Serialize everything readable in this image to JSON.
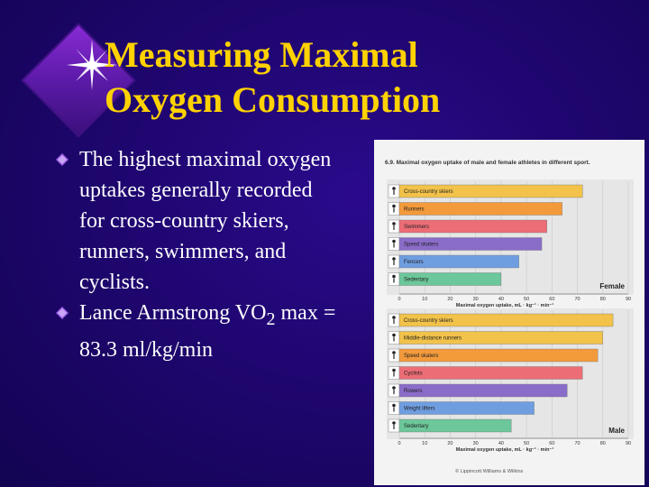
{
  "slide": {
    "title_line1": "Measuring Maximal",
    "title_line2": "Oxygen Consumption",
    "bullets": [
      {
        "text": "The highest maximal oxygen uptakes generally recorded for cross-country skiers, runners, swimmers, and cyclists."
      },
      {
        "text_before": "Lance Armstrong VO",
        "subscript": "2",
        "text_after": " max = 83.3 ml/kg/min"
      }
    ],
    "colors": {
      "background": "#1f0670",
      "title": "#ffd200",
      "text": "#ffffff",
      "bullet": "#9b5de5"
    }
  },
  "figure": {
    "title": "6.9. Maximal oxygen uptake of male and female athletes in different sport.",
    "credit": "© Lippincott Williams & Wilkins"
  },
  "chart_data": [
    {
      "type": "bar",
      "orientation": "horizontal",
      "panel_label": "Female",
      "categories": [
        "Cross-country skiers",
        "Runners",
        "Swimmers",
        "Speed skaters",
        "Fencers",
        "Sedentary"
      ],
      "values": [
        72,
        64,
        58,
        56,
        47,
        40
      ],
      "colors": [
        "#f2c24a",
        "#f39a3b",
        "#ec6d76",
        "#8a6cc9",
        "#6f9ee0",
        "#6cc79a"
      ],
      "xlabel": "Maximal oxygen uptake, mL · kg⁻¹ · min⁻¹",
      "xticks": [
        0,
        10,
        20,
        30,
        40,
        50,
        60,
        70,
        80,
        90
      ],
      "xlim": [
        0,
        90
      ]
    },
    {
      "type": "bar",
      "orientation": "horizontal",
      "panel_label": "Male",
      "categories": [
        "Cross-country skiers",
        "Middle-distance runners",
        "Speed skaters",
        "Cyclists",
        "Rowers",
        "Weight lifters",
        "Sedentary"
      ],
      "values": [
        84,
        80,
        78,
        72,
        66,
        53,
        44
      ],
      "colors": [
        "#f2c24a",
        "#f2c24a",
        "#f39a3b",
        "#ec6d76",
        "#8a6cc9",
        "#6f9ee0",
        "#6cc79a"
      ],
      "xlabel": "Maximal oxygen uptake, mL · kg⁻¹ · min⁻¹",
      "xticks": [
        0,
        10,
        20,
        30,
        40,
        50,
        60,
        70,
        80,
        90
      ],
      "xlim": [
        0,
        90
      ]
    }
  ]
}
